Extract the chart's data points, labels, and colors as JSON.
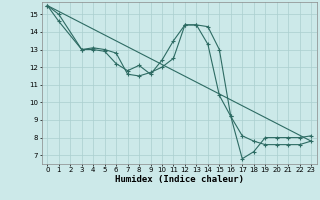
{
  "xlabel": "Humidex (Indice chaleur)",
  "xlim": [
    -0.5,
    23.5
  ],
  "ylim": [
    6.5,
    15.7
  ],
  "xticks": [
    0,
    1,
    2,
    3,
    4,
    5,
    6,
    7,
    8,
    9,
    10,
    11,
    12,
    13,
    14,
    15,
    16,
    17,
    18,
    19,
    20,
    21,
    22,
    23
  ],
  "yticks": [
    7,
    8,
    9,
    10,
    11,
    12,
    13,
    14,
    15
  ],
  "bg_color": "#cce9e9",
  "line_color": "#2d6b63",
  "grid_color": "#aacfcf",
  "line1_x": [
    0,
    1,
    3,
    4,
    5,
    6,
    7,
    8,
    9,
    10,
    11,
    12,
    13,
    14,
    15,
    16,
    17,
    18,
    19,
    20,
    21,
    22,
    23
  ],
  "line1_y": [
    15.5,
    15.0,
    13.0,
    13.0,
    12.9,
    12.2,
    11.8,
    12.1,
    11.6,
    12.4,
    13.5,
    14.4,
    14.4,
    13.3,
    10.4,
    9.2,
    8.1,
    7.8,
    7.6,
    7.6,
    7.6,
    7.6,
    7.8
  ],
  "line2_x": [
    0,
    1,
    3,
    4,
    5,
    6,
    7,
    8,
    9,
    10,
    11,
    12,
    13,
    14,
    15,
    16,
    17,
    18,
    19,
    20,
    21,
    22,
    23
  ],
  "line2_y": [
    15.5,
    14.6,
    13.0,
    13.1,
    13.0,
    12.8,
    11.6,
    11.5,
    11.7,
    12.0,
    12.5,
    14.4,
    14.4,
    14.3,
    13.0,
    9.2,
    6.8,
    7.2,
    8.0,
    8.0,
    8.0,
    8.0,
    8.1
  ],
  "line3_x": [
    0,
    23
  ],
  "line3_y": [
    15.5,
    7.8
  ]
}
